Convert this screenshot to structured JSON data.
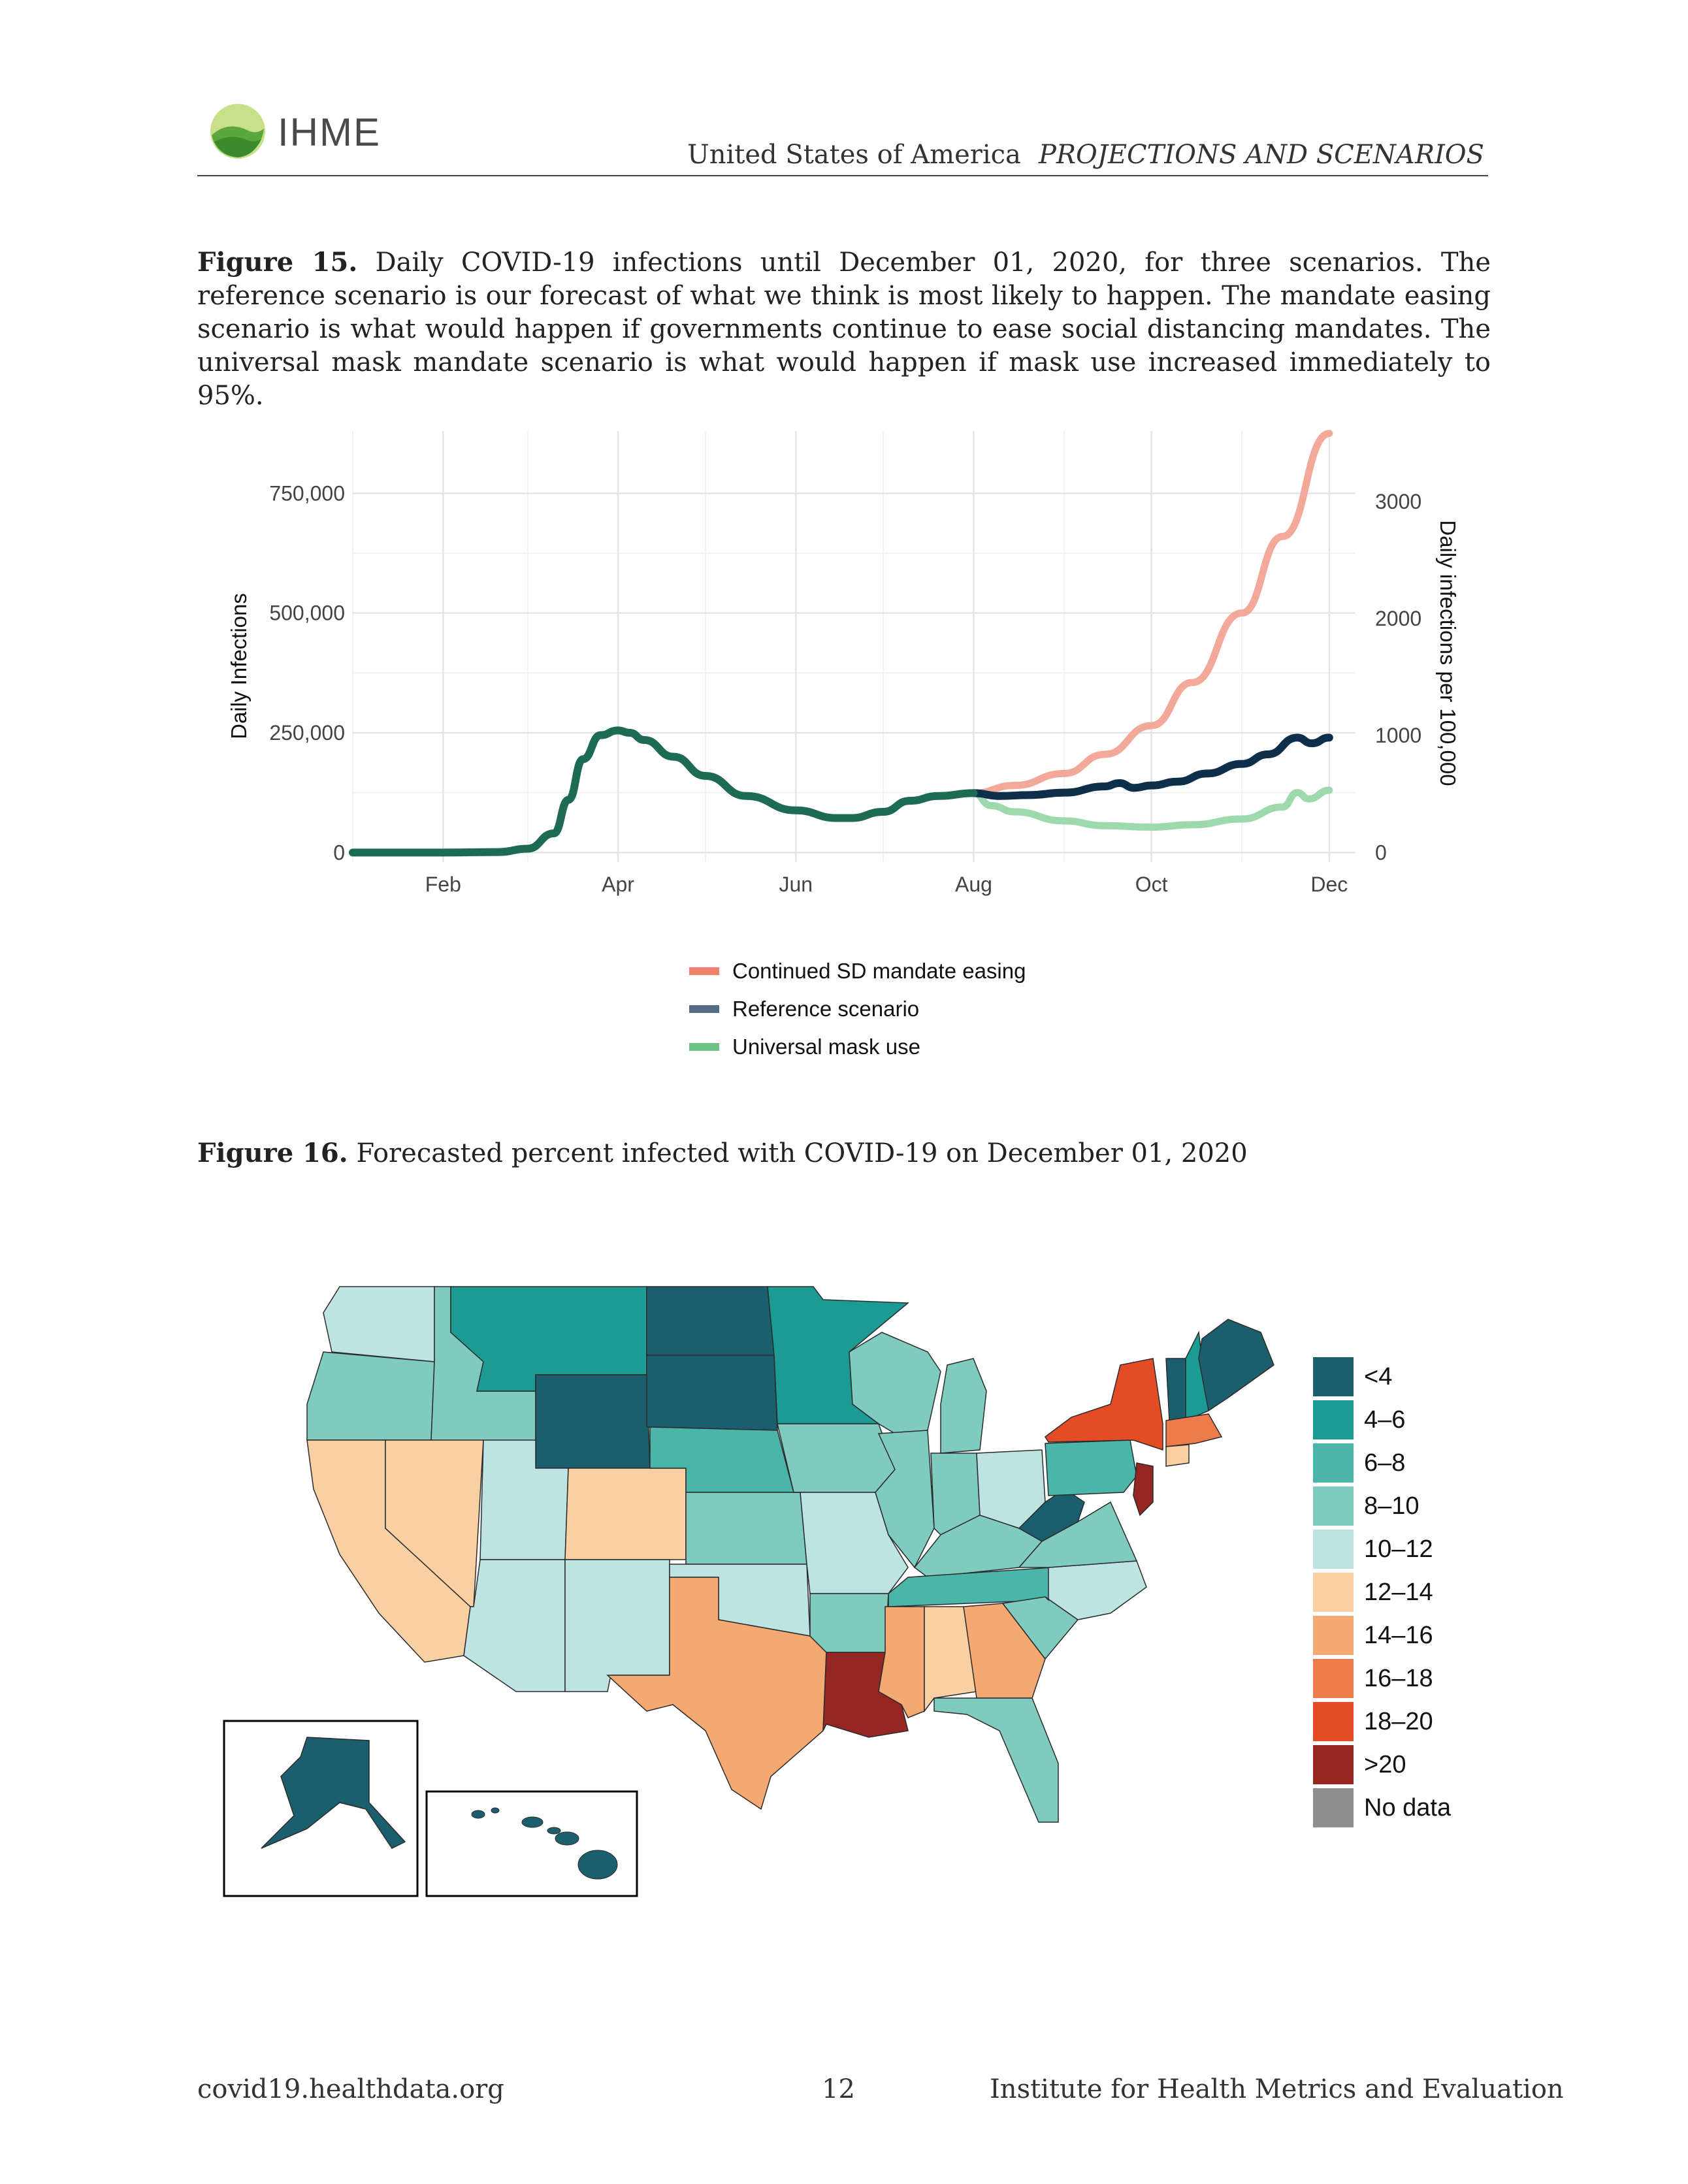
{
  "header": {
    "logo_text": "IHME",
    "country": "United States of America",
    "section": "PROJECTIONS AND SCENARIOS"
  },
  "figure15": {
    "label": "Figure 15.",
    "caption": "Daily COVID-19 infections until December 01, 2020, for three scenarios. The reference scenario is our forecast of what we think is most likely to happen. The mandate easing scenario is what would happen if governments continue to ease social distancing mandates. The universal mask mandate scenario is what would happen if mask use increased immediately to 95%."
  },
  "chart_data": {
    "type": "line",
    "ylabel": "Daily Infections",
    "ylabel_right": "Daily infections per 100,000",
    "y_ticks": [
      "0",
      "250,000",
      "500,000",
      "750,000"
    ],
    "y_tick_values": [
      0,
      250000,
      500000,
      750000
    ],
    "y_right_ticks": [
      "0",
      "1000",
      "2000",
      "3000"
    ],
    "y_right_tick_values": [
      0,
      1000,
      2000,
      3000
    ],
    "x_ticks": [
      "Feb",
      "Apr",
      "Jun",
      "Aug",
      "Oct",
      "Dec"
    ],
    "x_tick_dates": [
      "2020-02-01",
      "2020-04-01",
      "2020-06-01",
      "2020-08-01",
      "2020-10-01",
      "2020-12-01"
    ],
    "xlim": [
      "2020-01-01",
      "2020-12-10"
    ],
    "ylim": [
      -20000,
      880000
    ],
    "grid": true,
    "legend_position": "bottom",
    "colors": {
      "history": "#1d6b55",
      "easing": "#f2a99a",
      "reference": "#0e2f4b",
      "mask": "#9ed8ad"
    },
    "series": [
      {
        "name": "",
        "key": "history",
        "x": [
          "2020-01-01",
          "2020-02-01",
          "2020-02-20",
          "2020-03-01",
          "2020-03-10",
          "2020-03-15",
          "2020-03-20",
          "2020-03-26",
          "2020-04-01",
          "2020-04-05",
          "2020-04-10",
          "2020-04-20",
          "2020-05-01",
          "2020-05-15",
          "2020-06-01",
          "2020-06-15",
          "2020-06-20",
          "2020-07-01",
          "2020-07-10",
          "2020-07-20",
          "2020-08-01"
        ],
        "values": [
          0,
          0,
          1000,
          8000,
          40000,
          110000,
          195000,
          245000,
          255000,
          250000,
          235000,
          200000,
          160000,
          118000,
          88000,
          72000,
          72000,
          85000,
          108000,
          118000,
          124000
        ]
      },
      {
        "name": "Continued SD mandate easing",
        "key": "easing",
        "x": [
          "2020-08-01",
          "2020-08-15",
          "2020-09-01",
          "2020-09-15",
          "2020-10-01",
          "2020-10-15",
          "2020-11-01",
          "2020-11-15",
          "2020-12-01"
        ],
        "values": [
          124000,
          140000,
          165000,
          205000,
          265000,
          355000,
          500000,
          660000,
          875000
        ]
      },
      {
        "name": "Reference scenario",
        "key": "reference",
        "x": [
          "2020-08-01",
          "2020-08-10",
          "2020-08-20",
          "2020-09-01",
          "2020-09-15",
          "2020-09-20",
          "2020-09-25",
          "2020-10-01",
          "2020-10-10",
          "2020-10-20",
          "2020-11-01",
          "2020-11-10",
          "2020-11-20",
          "2020-11-25",
          "2020-12-01"
        ],
        "values": [
          124000,
          118000,
          120000,
          125000,
          138000,
          145000,
          135000,
          140000,
          148000,
          165000,
          185000,
          205000,
          240000,
          228000,
          240000
        ]
      },
      {
        "name": "Universal mask use",
        "key": "mask",
        "x": [
          "2020-08-01",
          "2020-08-07",
          "2020-08-15",
          "2020-09-01",
          "2020-09-15",
          "2020-10-01",
          "2020-10-15",
          "2020-11-01",
          "2020-11-15",
          "2020-11-20",
          "2020-11-24",
          "2020-12-01"
        ],
        "values": [
          124000,
          98000,
          85000,
          66000,
          56000,
          53000,
          58000,
          70000,
          95000,
          125000,
          112000,
          130000
        ]
      }
    ]
  },
  "figure16": {
    "label": "Figure 16.",
    "caption": "Forecasted percent infected with COVID-19 on December 01, 2020"
  },
  "map_legend": [
    {
      "label": "<4",
      "color": "#1b5e6e"
    },
    {
      "label": "4–6",
      "color": "#1b9b94"
    },
    {
      "label": "6–8",
      "color": "#4ab6aa"
    },
    {
      "label": "8–10",
      "color": "#7fcbbf"
    },
    {
      "label": "10–12",
      "color": "#bde4e2"
    },
    {
      "label": "12–14",
      "color": "#f9cfa4"
    },
    {
      "label": "14–16",
      "color": "#f4a972"
    },
    {
      "label": "16–18",
      "color": "#ee7b4b"
    },
    {
      "label": "18–20",
      "color": "#e44c25"
    },
    {
      "label": ">20",
      "color": "#962622"
    },
    {
      "label": "No data",
      "color": "#8d8d8d"
    }
  ],
  "footer": {
    "left": "covid19.healthdata.org",
    "page": "12",
    "right": "Institute for Health Metrics and Evaluation"
  }
}
